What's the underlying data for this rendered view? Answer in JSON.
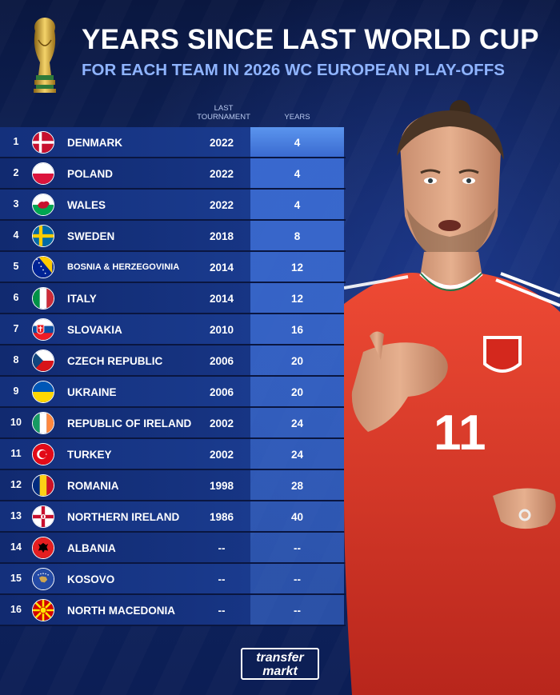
{
  "header": {
    "title": "YEARS SINCE LAST WORLD CUP",
    "subtitle": "FOR EACH TEAM IN 2026 WC EUROPEAN PLAY-OFFS"
  },
  "columns": {
    "last_tournament_line1": "LAST",
    "last_tournament_line2": "TOURNAMENT",
    "years": "YEARS"
  },
  "colors": {
    "years_highlight": "#5b95ee",
    "years_cell": "#3a6ad0",
    "row_bg": "#1a3b8e",
    "subtitle": "#8fb4ff",
    "shirt": "#e0392b"
  },
  "rows": [
    {
      "rank": "1",
      "team": "DENMARK",
      "flag": "denmark-flag-icon",
      "last": "2022",
      "years": "4"
    },
    {
      "rank": "2",
      "team": "POLAND",
      "flag": "poland-flag-icon",
      "last": "2022",
      "years": "4"
    },
    {
      "rank": "3",
      "team": "WALES",
      "flag": "wales-flag-icon",
      "last": "2022",
      "years": "4"
    },
    {
      "rank": "4",
      "team": "SWEDEN",
      "flag": "sweden-flag-icon",
      "last": "2018",
      "years": "8"
    },
    {
      "rank": "5",
      "team": "BOSNIA & HERZEGOVINIA",
      "flag": "bosnia-flag-icon",
      "last": "2014",
      "years": "12"
    },
    {
      "rank": "6",
      "team": "ITALY",
      "flag": "italy-flag-icon",
      "last": "2014",
      "years": "12"
    },
    {
      "rank": "7",
      "team": "SLOVAKIA",
      "flag": "slovakia-flag-icon",
      "last": "2010",
      "years": "16"
    },
    {
      "rank": "8",
      "team": "CZECH REPUBLIC",
      "flag": "czech-flag-icon",
      "last": "2006",
      "years": "20"
    },
    {
      "rank": "9",
      "team": "UKRAINE",
      "flag": "ukraine-flag-icon",
      "last": "2006",
      "years": "20"
    },
    {
      "rank": "10",
      "team": "REPUBLIC OF IRELAND",
      "flag": "ireland-flag-icon",
      "last": "2002",
      "years": "24"
    },
    {
      "rank": "11",
      "team": "TURKEY",
      "flag": "turkey-flag-icon",
      "last": "2002",
      "years": "24"
    },
    {
      "rank": "12",
      "team": "ROMANIA",
      "flag": "romania-flag-icon",
      "last": "1998",
      "years": "28"
    },
    {
      "rank": "13",
      "team": "NORTHERN IRELAND",
      "flag": "northern-ireland-flag-icon",
      "last": "1986",
      "years": "40"
    },
    {
      "rank": "14",
      "team": "ALBANIA",
      "flag": "albania-flag-icon",
      "last": "--",
      "years": "--"
    },
    {
      "rank": "15",
      "team": "KOSOVO",
      "flag": "kosovo-flag-icon",
      "last": "--",
      "years": "--"
    },
    {
      "rank": "16",
      "team": "NORTH MACEDONIA",
      "flag": "north-macedonia-flag-icon",
      "last": "--",
      "years": "--"
    }
  ],
  "player": {
    "shirt_number": "11"
  },
  "logo": {
    "line1": "transfer",
    "line2": "markt"
  }
}
